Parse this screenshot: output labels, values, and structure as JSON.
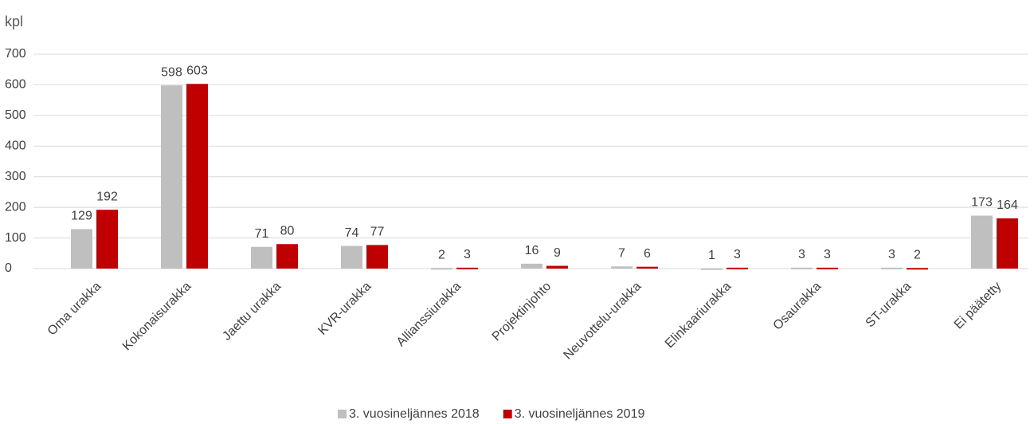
{
  "chart_data": {
    "type": "bar",
    "y_label": "kpl",
    "categories": [
      "Oma urakka",
      "Kokonaisurakka",
      "Jaettu urakka",
      "KVR-urakka",
      "Allianssiurakka",
      "Projektinjohto",
      "Neuvottelu-urakka",
      "Elinkaariurakka",
      "Osaurakka",
      "ST-urakka",
      "Ei päätetty"
    ],
    "series": [
      {
        "name": "3. vuosineljännes 2018",
        "color": "#bfbfbf",
        "values": [
          129,
          598,
          71,
          74,
          2,
          16,
          7,
          1,
          3,
          3,
          173
        ]
      },
      {
        "name": "3. vuosineljännes 2019",
        "color": "#c00000",
        "values": [
          192,
          603,
          80,
          77,
          3,
          9,
          6,
          3,
          3,
          2,
          164
        ]
      }
    ],
    "ylim": [
      0,
      700
    ],
    "yticks": [
      0,
      100,
      200,
      300,
      400,
      500,
      600,
      700
    ],
    "grid": true,
    "legend": "bottom"
  }
}
